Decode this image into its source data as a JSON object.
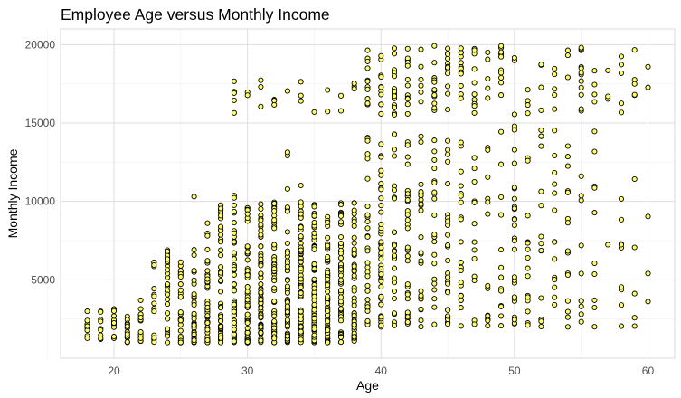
{
  "chart_data": {
    "type": "scatter",
    "title": "Employee Age versus Monthly Income",
    "xlabel": "Age",
    "ylabel": "Monthly Income",
    "xlim": [
      16,
      62
    ],
    "ylim": [
      0,
      21000
    ],
    "xticks": [
      20,
      30,
      40,
      50,
      60
    ],
    "yticks": [
      5000,
      10000,
      15000,
      20000
    ],
    "grid": true,
    "point_color": "#ffff66",
    "point_edge_color": "#000000",
    "point_count_note": "approximately 1470 employees; points sampled to reflect the visible distribution",
    "points": []
  }
}
